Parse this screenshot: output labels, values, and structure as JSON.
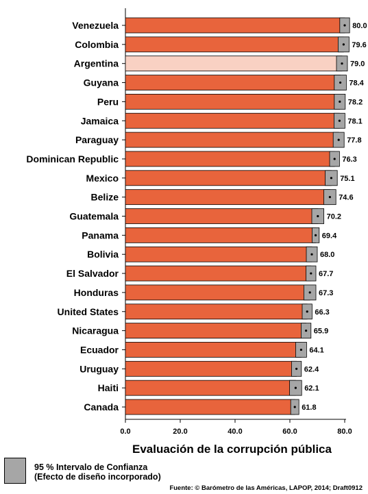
{
  "chart_data": {
    "type": "bar",
    "orientation": "horizontal",
    "categories": [
      "Venezuela",
      "Colombia",
      "Argentina",
      "Guyana",
      "Peru",
      "Jamaica",
      "Paraguay",
      "Dominican Republic",
      "Mexico",
      "Belize",
      "Guatemala",
      "Panama",
      "Bolivia",
      "El Salvador",
      "Honduras",
      "United States",
      "Nicaragua",
      "Ecuador",
      "Uruguay",
      "Haiti",
      "Canada"
    ],
    "values": [
      80.0,
      79.6,
      79.0,
      78.4,
      78.2,
      78.1,
      77.8,
      76.3,
      75.1,
      74.6,
      70.2,
      69.4,
      68.0,
      67.7,
      67.3,
      66.3,
      65.9,
      64.1,
      62.4,
      62.1,
      61.8
    ],
    "value_labels": [
      "80.0",
      "79.6",
      "79.0",
      "78.4",
      "78.2",
      "78.1",
      "77.8",
      "76.3",
      "75.1",
      "74.6",
      "70.2",
      "69.4",
      "68.0",
      "67.7",
      "67.3",
      "66.3",
      "65.9",
      "64.1",
      "62.4",
      "62.1",
      "61.8"
    ],
    "ci_half_width": [
      1.8,
      2.0,
      2.0,
      2.2,
      2.0,
      2.0,
      2.0,
      1.8,
      2.2,
      2.2,
      2.2,
      1.3,
      2.0,
      1.8,
      2.2,
      1.8,
      1.8,
      2.0,
      1.8,
      2.2,
      1.5
    ],
    "highlight_category": "Argentina",
    "xlabel": "Evaluación de la corrupción pública",
    "xlim": [
      0,
      80
    ],
    "x_ticks": [
      "0.0",
      "20.0",
      "40.0",
      "60.0",
      "80.0"
    ],
    "x_tick_values": [
      0,
      20,
      40,
      60,
      80
    ],
    "grid": false,
    "colors": {
      "bar": "#e8643c",
      "highlight": "#f9d1c3",
      "ci": "#a6a6a6"
    }
  },
  "legend": {
    "line1": "95 % Intervalo de Confianza",
    "line2": "(Efecto de diseño incorporado)"
  },
  "source": "Fuente: © Barómetro de las Américas, LAPOP, 2014; Draft0912"
}
